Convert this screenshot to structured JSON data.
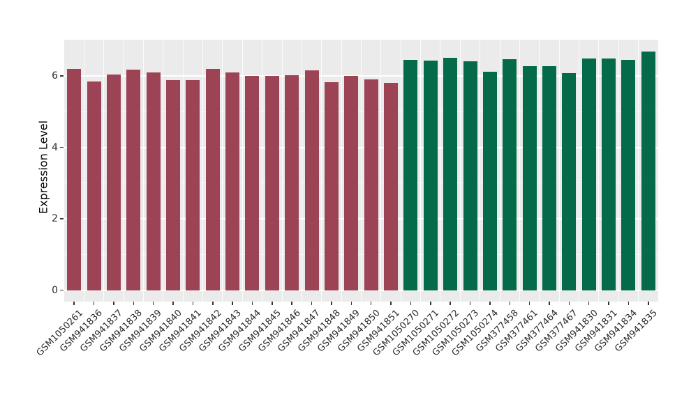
{
  "figure": {
    "background_color": "#FFFFFF",
    "panel_background_color": "#EBEBEB",
    "grid_color": "#FFFFFF"
  },
  "chart_data": {
    "type": "bar",
    "title": "",
    "xlabel": "",
    "ylabel": "Expression Level",
    "ylim": [
      0,
      7.01
    ],
    "yticks": [
      0,
      2,
      4,
      6
    ],
    "grid": true,
    "legend": false,
    "categories": [
      "GSM1050261",
      "GSM941836",
      "GSM941837",
      "GSM941838",
      "GSM941839",
      "GSM941840",
      "GSM941841",
      "GSM941842",
      "GSM941843",
      "GSM941844",
      "GSM941845",
      "GSM941846",
      "GSM941847",
      "GSM941848",
      "GSM941849",
      "GSM941850",
      "GSM941851",
      "GSM1050270",
      "GSM1050271",
      "GSM1050272",
      "GSM1050273",
      "GSM1050274",
      "GSM377458",
      "GSM377461",
      "GSM377464",
      "GSM377467",
      "GSM941830",
      "GSM941831",
      "GSM941834",
      "GSM941835"
    ],
    "values": [
      6.19,
      5.84,
      6.04,
      6.17,
      6.09,
      5.88,
      5.88,
      6.2,
      6.09,
      6.0,
      6.01,
      6.02,
      6.16,
      5.82,
      6.0,
      5.9,
      5.81,
      6.45,
      6.43,
      6.51,
      6.41,
      6.11,
      6.47,
      6.28,
      6.28,
      6.07,
      6.48,
      6.49,
      6.44,
      6.68
    ],
    "bar_group_index": [
      0,
      0,
      0,
      0,
      0,
      0,
      0,
      0,
      0,
      0,
      0,
      0,
      0,
      0,
      0,
      0,
      0,
      1,
      1,
      1,
      1,
      1,
      1,
      1,
      1,
      1,
      1,
      1,
      1,
      1
    ],
    "group_colors": [
      "#9C4355",
      "#046A49"
    ]
  }
}
